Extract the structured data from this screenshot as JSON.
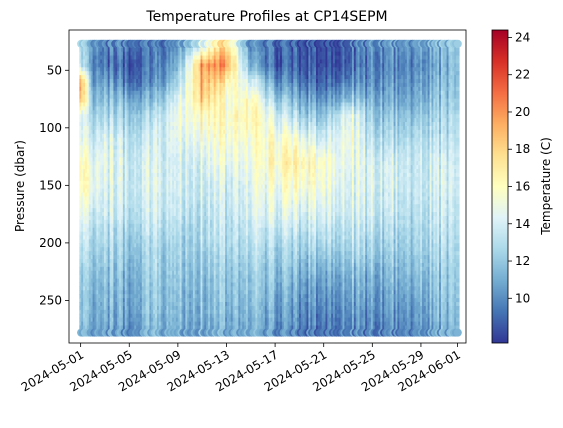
{
  "chart_data": {
    "type": "heatmap",
    "title": "Temperature Profiles at CP14SEPM",
    "xlabel": "",
    "ylabel": "Pressure (dbar)",
    "colorbar_label": "Temperature (C)",
    "colormap": "RdYlBu_r",
    "x_ticks": [
      "2024-05-01",
      "2024-05-05",
      "2024-05-09",
      "2024-05-13",
      "2024-05-17",
      "2024-05-21",
      "2024-05-25",
      "2024-05-29",
      "2024-06-01"
    ],
    "xlim": [
      "2024-04-30T01:00",
      "2024-06-01T17:00"
    ],
    "y_ticks": [
      50,
      100,
      150,
      200,
      250
    ],
    "ylim": [
      287,
      15
    ],
    "y_inverted": true,
    "colorbar_ticks": [
      10,
      12,
      14,
      16,
      18,
      20,
      22,
      24
    ],
    "colorbar_range": [
      7.6,
      24.4
    ],
    "time_range": [
      "2024-05-01",
      "2024-06-01"
    ],
    "pressure_range": [
      27,
      278
    ],
    "temperature_profile_pressures": [
      27,
      45,
      60,
      75,
      90,
      110,
      130,
      150,
      175,
      200,
      230,
      260,
      278
    ],
    "temperature_profiles": [
      {
        "date": "2024-05-01",
        "values": [
          12.5,
          13,
          19.5,
          19,
          14,
          14.5,
          16,
          16,
          14.5,
          13,
          12,
          11.5,
          11
        ]
      },
      {
        "date": "2024-05-02",
        "values": [
          11,
          10.5,
          11,
          12,
          13,
          14,
          15,
          15.5,
          14,
          13,
          12,
          11.5,
          11
        ]
      },
      {
        "date": "2024-05-03",
        "values": [
          9.5,
          9,
          10.5,
          11.5,
          12.5,
          14,
          14.5,
          14,
          13.5,
          12.5,
          11.5,
          11,
          10.5
        ]
      },
      {
        "date": "2024-05-05",
        "values": [
          10,
          9,
          9.5,
          11.5,
          12.5,
          13.5,
          14,
          14,
          13.5,
          12.5,
          11.5,
          11,
          10.5
        ]
      },
      {
        "date": "2024-05-07",
        "values": [
          9,
          9,
          9.5,
          11,
          12.5,
          13.5,
          14,
          14,
          13.5,
          12.5,
          12,
          11.5,
          11
        ]
      },
      {
        "date": "2024-05-09",
        "values": [
          10,
          11,
          12.5,
          14,
          15,
          14.5,
          14,
          14,
          13.5,
          12.5,
          12,
          11.5,
          11
        ]
      },
      {
        "date": "2024-05-11",
        "values": [
          14,
          20,
          19.5,
          18.5,
          16.5,
          15.5,
          14.5,
          14,
          13.5,
          13,
          12,
          11.5,
          11
        ]
      },
      {
        "date": "2024-05-13",
        "values": [
          18,
          20,
          17,
          15.5,
          16,
          15.5,
          15,
          14,
          13.5,
          13,
          12,
          11.5,
          11
        ]
      },
      {
        "date": "2024-05-15",
        "values": [
          10,
          11,
          14,
          16,
          16.5,
          15.5,
          15,
          14.5,
          14,
          13,
          12,
          11.5,
          11
        ]
      },
      {
        "date": "2024-05-17",
        "values": [
          9,
          8.5,
          10,
          12,
          14,
          15.5,
          16,
          15,
          14,
          12.5,
          11.5,
          10.5,
          10
        ]
      },
      {
        "date": "2024-05-19",
        "values": [
          8.5,
          8.5,
          9.5,
          11,
          12.5,
          15,
          16.5,
          15.5,
          14,
          12.5,
          11,
          10,
          9.5
        ]
      },
      {
        "date": "2024-05-21",
        "values": [
          8.5,
          8.5,
          9,
          10.5,
          12,
          14,
          16,
          15.5,
          14.5,
          13,
          11,
          10,
          9.5
        ]
      },
      {
        "date": "2024-05-23",
        "values": [
          9,
          9,
          10,
          12,
          15,
          15.5,
          15,
          14.5,
          14,
          13,
          11.5,
          10.5,
          10
        ]
      },
      {
        "date": "2024-05-25",
        "values": [
          10,
          9.5,
          10,
          11,
          12,
          13,
          14,
          14,
          13.5,
          12.5,
          11,
          10,
          9.5
        ]
      },
      {
        "date": "2024-05-27",
        "values": [
          10.5,
          10,
          10.5,
          11,
          12,
          13,
          14,
          14,
          13.5,
          12.5,
          11.5,
          10.5,
          10
        ]
      },
      {
        "date": "2024-05-29",
        "values": [
          10.5,
          10,
          10.5,
          11,
          12,
          13,
          13.5,
          13.5,
          13,
          12.5,
          11.5,
          10.5,
          10
        ]
      },
      {
        "date": "2024-05-31",
        "values": [
          11.5,
          11,
          11.5,
          12,
          12.5,
          13,
          14,
          14,
          13.5,
          13,
          12,
          11.5,
          11
        ]
      },
      {
        "date": "2024-06-01",
        "values": [
          12.5,
          12,
          12,
          12.5,
          13,
          13.5,
          14,
          14,
          13.5,
          13,
          12.5,
          12,
          11.5
        ]
      }
    ]
  }
}
